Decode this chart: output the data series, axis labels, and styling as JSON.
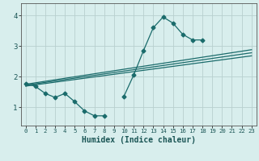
{
  "bg_color": "#d8eeed",
  "grid_color": "#b8d0cf",
  "line_color": "#1a6b6b",
  "marker_style": "D",
  "marker_size": 2.5,
  "line_width": 0.9,
  "xlabel": "Humidex (Indice chaleur)",
  "xlabel_fontsize": 7,
  "ytick_labels": [
    "1",
    "2",
    "3",
    "4"
  ],
  "yticks": [
    1,
    2,
    3,
    4
  ],
  "xticks": [
    0,
    1,
    2,
    3,
    4,
    5,
    6,
    7,
    8,
    9,
    10,
    11,
    12,
    13,
    14,
    15,
    16,
    17,
    18,
    19,
    20,
    21,
    22,
    23
  ],
  "xlim": [
    -0.5,
    23.5
  ],
  "ylim": [
    0.4,
    4.4
  ],
  "series": [
    {
      "x": [
        0,
        1,
        2,
        3,
        4,
        5,
        6,
        7,
        8,
        9,
        10,
        11,
        12,
        13,
        14,
        15,
        16,
        17,
        18
      ],
      "y": [
        1.78,
        1.68,
        1.45,
        1.32,
        1.45,
        1.18,
        0.88,
        0.72,
        0.72,
        null,
        1.35,
        2.05,
        2.85,
        3.6,
        3.95,
        3.75,
        3.38,
        3.2,
        3.2
      ]
    },
    {
      "x": [
        0,
        23
      ],
      "y": [
        1.75,
        2.88
      ]
    },
    {
      "x": [
        0,
        23
      ],
      "y": [
        1.72,
        2.78
      ]
    },
    {
      "x": [
        0,
        23
      ],
      "y": [
        1.69,
        2.68
      ]
    }
  ]
}
